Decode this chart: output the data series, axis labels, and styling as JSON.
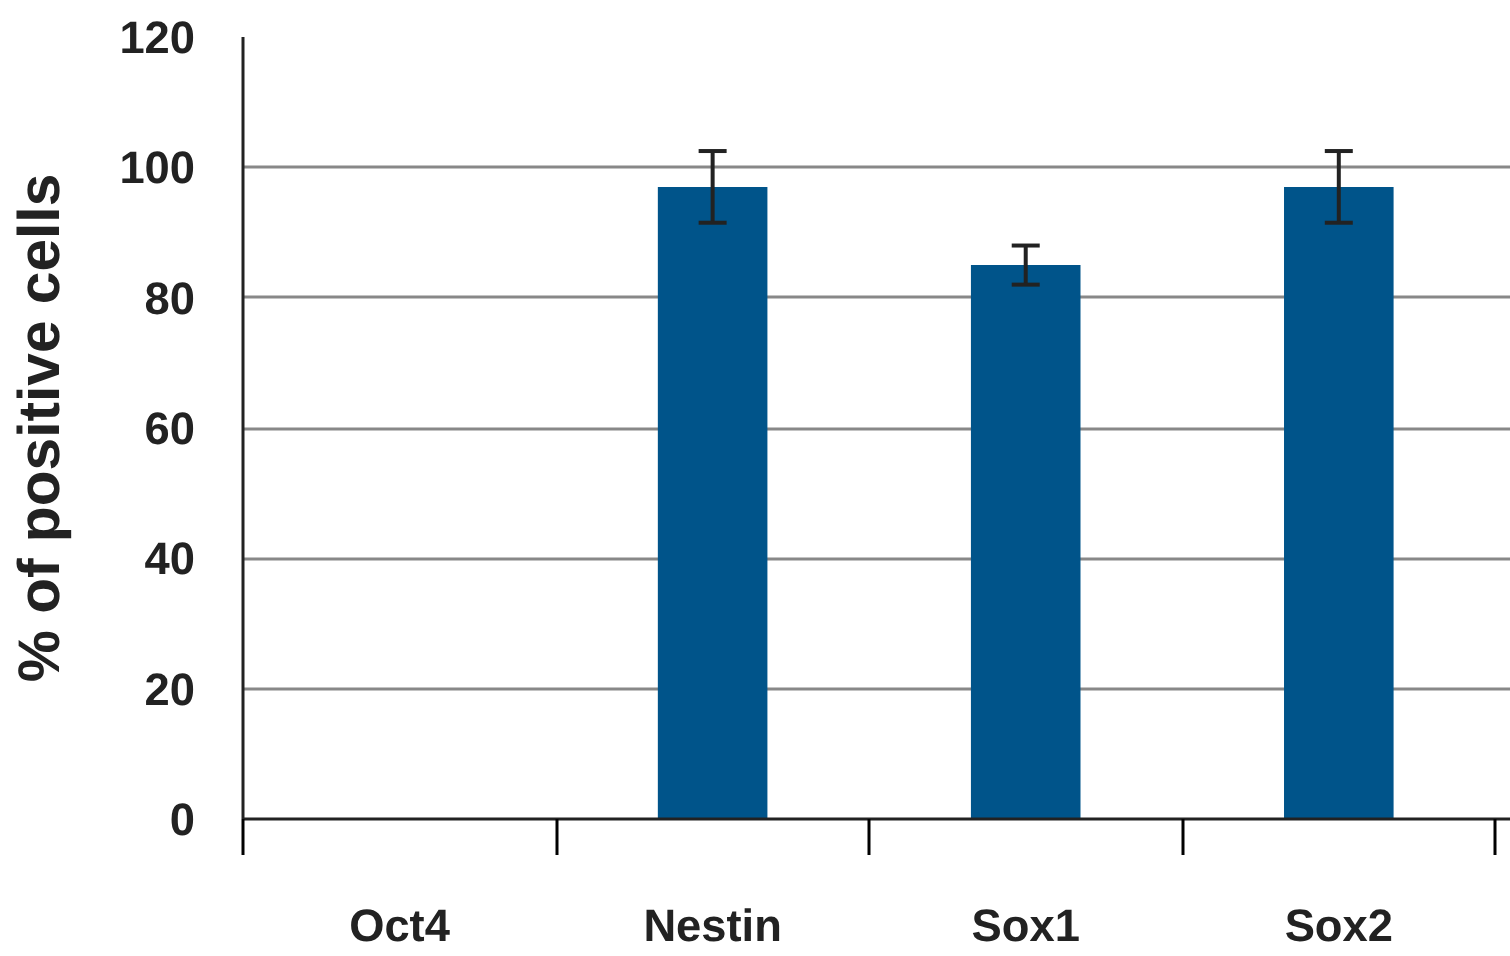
{
  "chart_data": {
    "type": "bar",
    "ylabel": "% of positive cells",
    "categories": [
      "Oct4",
      "Nestin",
      "Sox1",
      "Sox2"
    ],
    "values": [
      0,
      97,
      85,
      97
    ],
    "errors": [
      null,
      5.5,
      3,
      5.5
    ],
    "color": "#00548a",
    "ylim": [
      0,
      120
    ],
    "yticks": [
      0,
      20,
      40,
      60,
      80,
      100,
      120
    ],
    "grid": "y"
  }
}
